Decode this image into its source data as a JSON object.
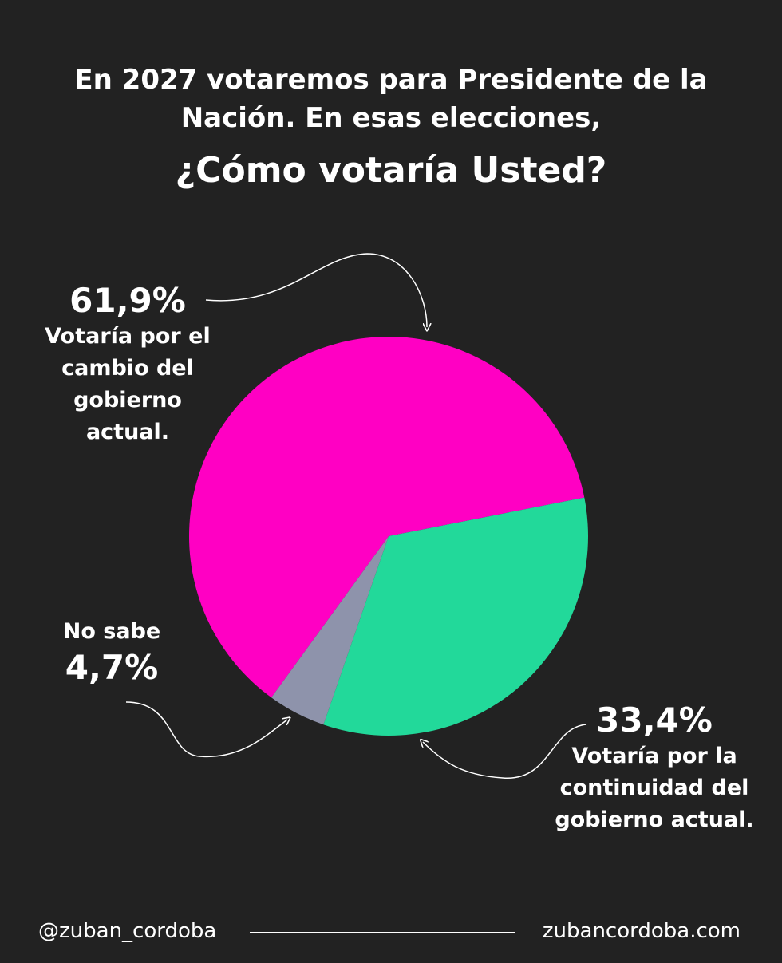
{
  "chart_data": {
    "type": "pie",
    "title": "En 2027 votaremos para Presidente de la Nación. En esas elecciones,",
    "subtitle": "¿Cómo votaría Usted?",
    "categories": [
      "Votaría por el cambio del gobierno actual.",
      "Votaría por la continuidad del gobierno actual.",
      "No sabe"
    ],
    "values": [
      61.9,
      33.4,
      4.7
    ],
    "value_labels": [
      "61,9%",
      "33,4%",
      "4,7%"
    ],
    "colors": [
      "#ff00c3",
      "#22d99a",
      "#8e93ab"
    ]
  },
  "footer": {
    "handle": "@zuban_cordoba",
    "website": "zubancordoba.com"
  }
}
